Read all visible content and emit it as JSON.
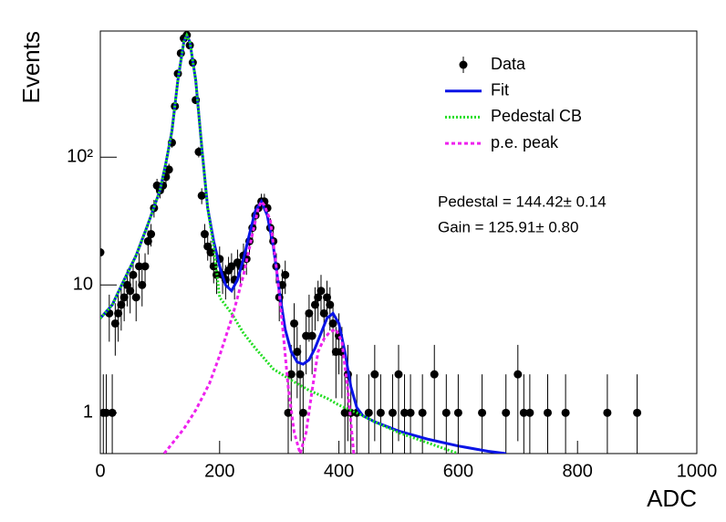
{
  "chart_data": {
    "type": "scatter-fit",
    "x_label": "ADC",
    "y_label": "Events",
    "xlim": [
      0,
      1000
    ],
    "xticks": [
      0,
      200,
      400,
      600,
      800,
      1000
    ],
    "ylim": [
      0.48,
      970
    ],
    "log_y": true,
    "yticks": [
      1,
      10,
      {
        "value": 100,
        "label": "10²"
      }
    ],
    "legend": "upper right",
    "annotations": [
      "Pedestal = 144.42± 0.14",
      "Gain = 125.91± 0.80"
    ],
    "series": [
      {
        "name": "Data",
        "color": "#000000",
        "style": "markers",
        "x": [
          0,
          5,
          10,
          15,
          20,
          25,
          30,
          35,
          40,
          45,
          50,
          55,
          60,
          65,
          70,
          75,
          80,
          85,
          90,
          95,
          100,
          105,
          110,
          115,
          120,
          125,
          130,
          135,
          140,
          145,
          150,
          155,
          160,
          165,
          170,
          175,
          180,
          185,
          190,
          195,
          200,
          205,
          210,
          215,
          220,
          225,
          230,
          235,
          240,
          245,
          250,
          255,
          260,
          265,
          270,
          275,
          280,
          285,
          290,
          295,
          300,
          305,
          310,
          315,
          320,
          325,
          330,
          335,
          340,
          345,
          350,
          355,
          360,
          365,
          370,
          375,
          380,
          385,
          390,
          395,
          400,
          405,
          410,
          415,
          420,
          430,
          450,
          460,
          470,
          490,
          500,
          510,
          520,
          540,
          560,
          580,
          600,
          640,
          680,
          700,
          710,
          720,
          750,
          780,
          850,
          900
        ],
        "values": [
          18,
          1,
          1,
          6,
          1,
          5,
          6,
          7,
          8,
          10,
          9,
          12,
          8,
          14,
          10,
          14,
          22,
          25,
          40,
          60,
          55,
          60,
          70,
          80,
          130,
          250,
          450,
          650,
          850,
          900,
          750,
          550,
          280,
          110,
          50,
          25,
          20,
          18,
          14,
          12,
          16,
          12,
          11,
          13,
          14,
          11,
          15,
          14,
          17,
          16,
          22,
          28,
          35,
          40,
          45,
          45,
          40,
          28,
          22,
          14,
          8,
          10,
          12,
          1,
          2,
          5,
          3,
          2,
          1,
          4,
          6,
          4,
          7,
          8,
          9,
          6,
          8,
          7,
          5,
          3,
          4,
          3,
          1,
          2,
          1,
          1,
          1,
          2,
          1,
          1,
          2,
          1,
          1,
          1,
          2,
          1,
          1,
          1,
          1,
          2,
          1,
          1,
          1,
          1,
          1,
          1
        ],
        "errors": [
          4.2,
          1,
          1,
          2.4,
          1,
          2.2,
          2.4,
          2.6,
          2.8,
          3.2,
          3,
          3.5,
          2.8,
          3.7,
          3.2,
          3.7,
          4.7,
          5,
          6.3,
          7.7,
          7.4,
          7.7,
          8.4,
          8.9,
          11.4,
          15.8,
          21.2,
          25.5,
          29.2,
          30,
          27.4,
          23.5,
          16.7,
          10.5,
          7.1,
          5,
          4.5,
          4.2,
          3.7,
          3.5,
          4,
          3.5,
          3.3,
          3.6,
          3.7,
          3.3,
          3.9,
          3.7,
          4.1,
          4,
          4.7,
          5.3,
          5.9,
          6.3,
          6.7,
          6.7,
          6.3,
          5.3,
          4.7,
          3.7,
          2.8,
          3.2,
          3.5,
          1,
          1.4,
          2.2,
          1.7,
          1.4,
          1,
          2,
          2.4,
          2,
          2.6,
          2.8,
          3,
          2.4,
          2.8,
          2.6,
          2.2,
          1.7,
          2,
          1.7,
          1,
          1.4,
          1,
          1,
          1,
          1.4,
          1,
          1,
          1.4,
          1,
          1,
          1,
          1.4,
          1,
          1,
          1,
          1,
          1.4,
          1,
          1,
          1,
          1,
          1,
          1
        ]
      },
      {
        "name": "Fit",
        "color": "#0a14e6",
        "style": "solid",
        "x": [
          0,
          20,
          40,
          60,
          80,
          100,
          110,
          120,
          130,
          140,
          145,
          150,
          160,
          170,
          180,
          190,
          200,
          210,
          220,
          230,
          240,
          250,
          260,
          270,
          280,
          290,
          300,
          310,
          320,
          330,
          340,
          350,
          360,
          370,
          380,
          390,
          400,
          410,
          420,
          430,
          440,
          460,
          500,
          550,
          600,
          650,
          680
        ],
        "values": [
          5.5,
          7,
          11,
          17,
          30,
          55,
          90,
          160,
          400,
          800,
          900,
          800,
          400,
          120,
          40,
          22,
          14,
          10,
          9,
          11,
          16,
          25,
          38,
          45,
          35,
          20,
          9,
          4.5,
          3,
          2.5,
          2.4,
          2.6,
          3.2,
          4.2,
          5.5,
          6,
          5,
          3,
          1.6,
          1.1,
          0.95,
          0.85,
          0.72,
          0.62,
          0.55,
          0.5,
          0.48
        ]
      },
      {
        "name": "Pedestal CB",
        "color": "#22dd22",
        "style": "dotted",
        "x": [
          0,
          20,
          40,
          60,
          80,
          100,
          110,
          120,
          130,
          140,
          145,
          150,
          160,
          170,
          180,
          190,
          200,
          220,
          240,
          260,
          290,
          320,
          350,
          380,
          400,
          430,
          460,
          500,
          550,
          600
        ],
        "values": [
          5.5,
          7,
          11,
          17,
          30,
          55,
          90,
          160,
          400,
          800,
          900,
          800,
          400,
          120,
          40,
          20,
          8,
          6,
          4.2,
          3.2,
          2.2,
          1.8,
          1.5,
          1.3,
          1.15,
          1,
          0.85,
          0.7,
          0.58,
          0.48
        ]
      },
      {
        "name": "p.e. peak",
        "color": "#ee22ee",
        "style": "dashed",
        "x": [
          107,
          140,
          160,
          183,
          200,
          222,
          240,
          255,
          265,
          270,
          275,
          285,
          295,
          305,
          315,
          325,
          335,
          345,
          355,
          365,
          375,
          385,
          395,
          405,
          415,
          425
        ],
        "values": [
          0.48,
          0.75,
          1.05,
          1.7,
          2.8,
          5.8,
          12,
          25,
          40,
          45,
          42,
          32,
          14,
          5,
          1.6,
          0.7,
          0.48,
          0.7,
          1.5,
          3,
          3.8,
          4.3,
          4.5,
          3.6,
          1.5,
          0.48
        ]
      }
    ]
  }
}
